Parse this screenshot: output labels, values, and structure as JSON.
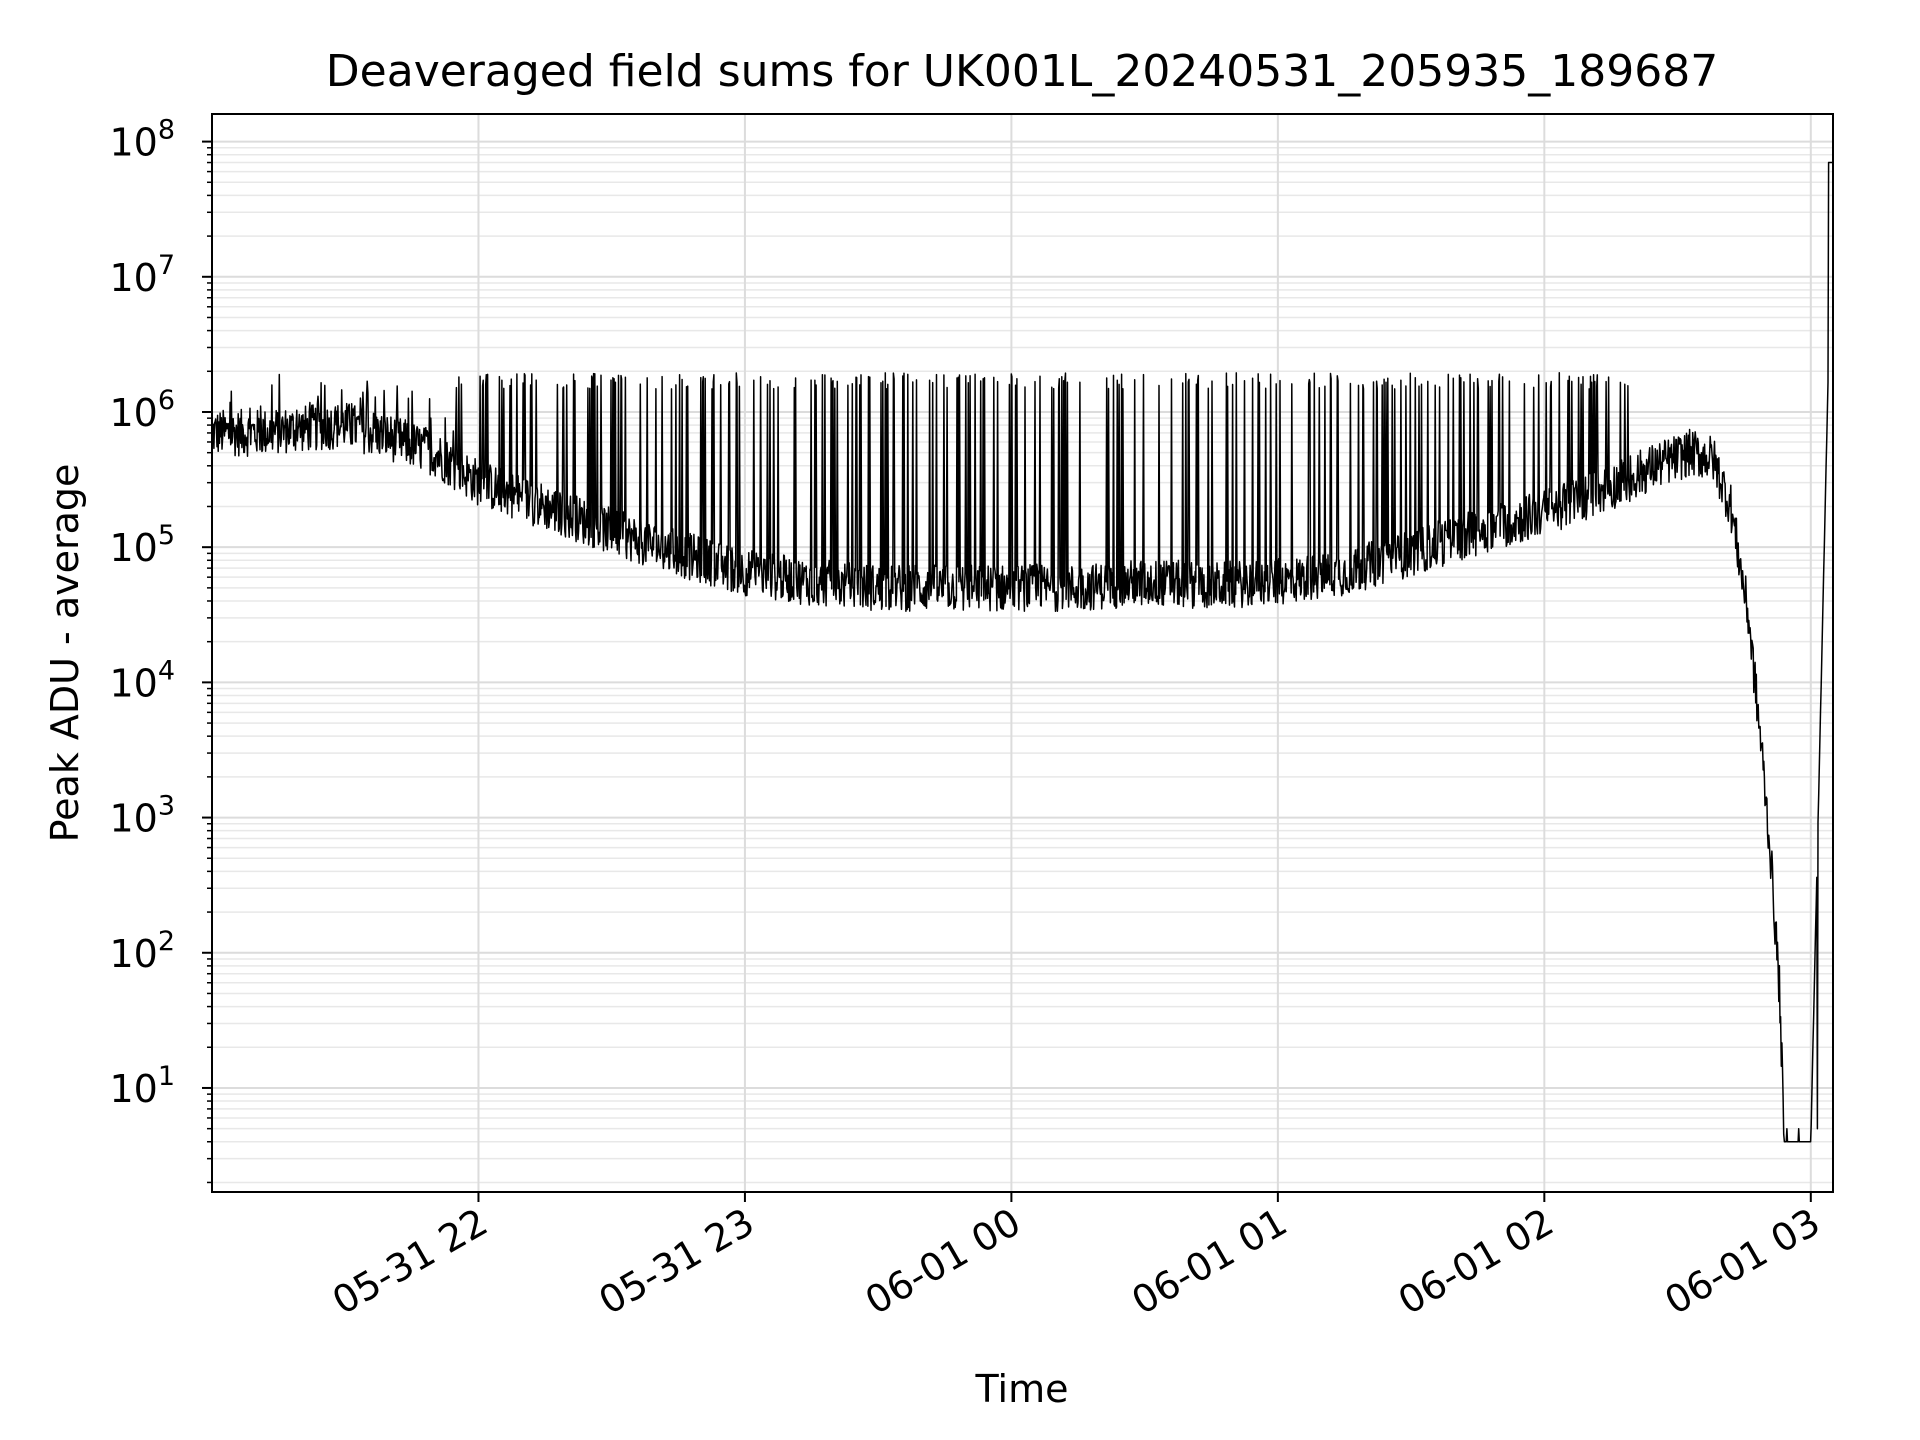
{
  "chart_data": {
    "type": "line",
    "title": "Deaveraged field sums for UK001L_20240531_205935_189687",
    "xlabel": "Time",
    "ylabel": "Peak ADU - average",
    "yscale": "log",
    "ylim": [
      1.7,
      160000000
    ],
    "xlim": [
      "2024-05-31 21:00",
      "2024-06-01 03:05"
    ],
    "grid": true,
    "x_ticks": [
      "05-31 22",
      "05-31 23",
      "06-01 00",
      "06-01 01",
      "06-01 02",
      "06-01 03"
    ],
    "y_ticks": [
      {
        "base": "10",
        "exp": "1"
      },
      {
        "base": "10",
        "exp": "2"
      },
      {
        "base": "10",
        "exp": "3"
      },
      {
        "base": "10",
        "exp": "4"
      },
      {
        "base": "10",
        "exp": "5"
      },
      {
        "base": "10",
        "exp": "6"
      },
      {
        "base": "10",
        "exp": "7"
      },
      {
        "base": "10",
        "exp": "8"
      }
    ],
    "series": [
      {
        "color": "#000000",
        "x": [
          "2024-05-31 21:00",
          "2024-05-31 21:10",
          "2024-05-31 21:20",
          "2024-05-31 21:30",
          "2024-05-31 21:40",
          "2024-05-31 21:50",
          "2024-05-31 22:00",
          "2024-05-31 22:15",
          "2024-05-31 22:30",
          "2024-05-31 22:45",
          "2024-05-31 23:00",
          "2024-05-31 23:15",
          "2024-05-31 23:30",
          "2024-05-31 23:45",
          "2024-06-01 00:00",
          "2024-06-01 00:15",
          "2024-06-01 00:30",
          "2024-06-01 00:45",
          "2024-06-01 01:00",
          "2024-06-01 01:15",
          "2024-06-01 01:30",
          "2024-06-01 01:45",
          "2024-06-01 02:00",
          "2024-06-01 02:15",
          "2024-06-01 02:25",
          "2024-06-01 02:33",
          "2024-06-01 02:38",
          "2024-06-01 02:42",
          "2024-06-01 02:46",
          "2024-06-01 02:49",
          "2024-06-01 02:51",
          "2024-06-01 02:53",
          "2024-06-01 02:54",
          "2024-06-01 03:00",
          "2024-06-01 03:05"
        ],
        "y": [
          700000,
          700000,
          750000,
          800000,
          650000,
          500000,
          300000,
          200000,
          130000,
          90000,
          65000,
          55000,
          50000,
          50000,
          50000,
          50000,
          55000,
          52000,
          55000,
          65000,
          90000,
          130000,
          180000,
          280000,
          400000,
          500000,
          450000,
          200000,
          30000,
          3000,
          500,
          50,
          4,
          4,
          70000000
        ],
        "spikes": {
          "start": "2024-05-31 21:55",
          "end": "2024-06-01 02:20",
          "peak_value": 1700000
        }
      }
    ]
  }
}
